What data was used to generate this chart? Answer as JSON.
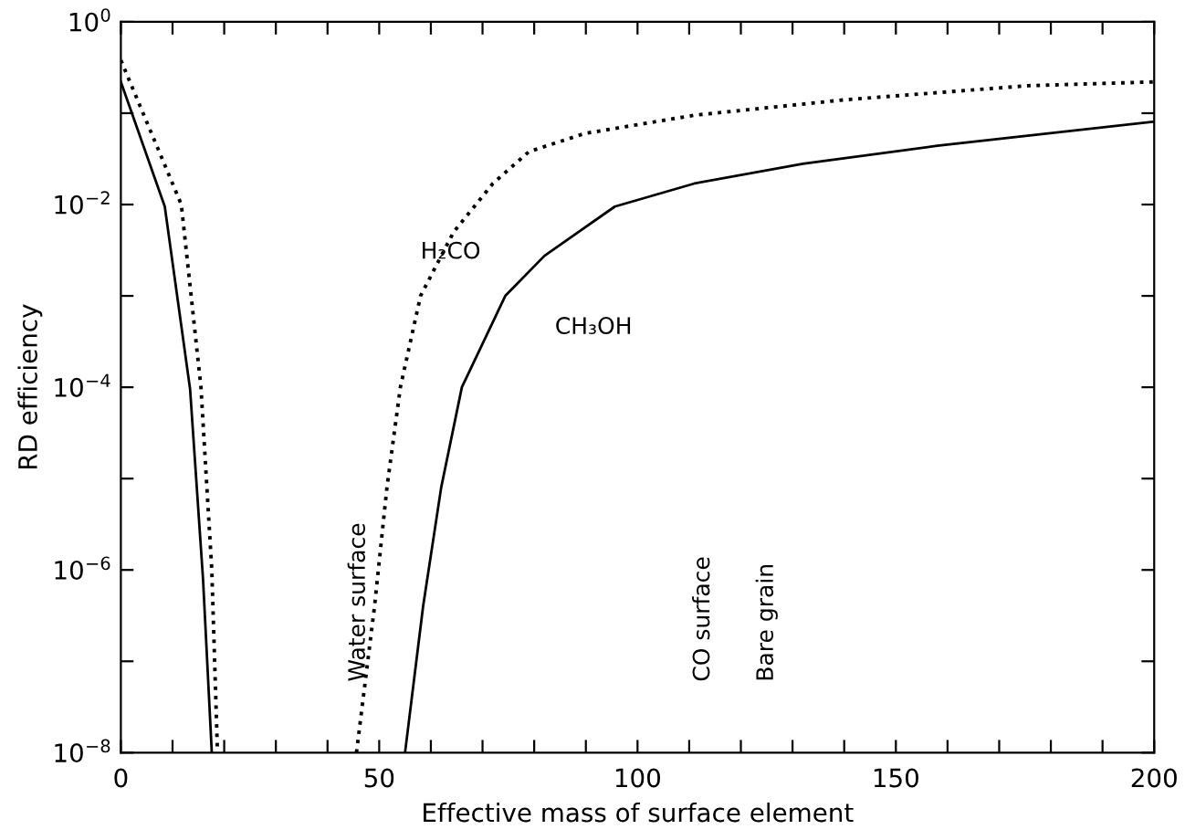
{
  "chart_data": {
    "type": "line",
    "xlabel": "Effective mass of surface element",
    "ylabel": "RD efficiency",
    "log": "y",
    "xlim": [
      0,
      200
    ],
    "ylim": [
      1e-08,
      1
    ],
    "xticks": [
      0,
      {
        "value": 10,
        "label": null
      },
      {
        "value": 20,
        "label": null
      },
      {
        "value": 30,
        "label": null
      },
      {
        "value": 40,
        "label": null
      },
      50,
      {
        "value": 60,
        "label": null
      },
      {
        "value": 70,
        "label": null
      },
      {
        "value": 80,
        "label": null
      },
      {
        "value": 90,
        "label": null
      },
      100,
      {
        "value": 110,
        "label": null
      },
      {
        "value": 120,
        "label": null
      },
      {
        "value": 130,
        "label": null
      },
      {
        "value": 140,
        "label": null
      },
      150,
      {
        "value": 160,
        "label": null
      },
      {
        "value": 170,
        "label": null
      },
      {
        "value": 180,
        "label": null
      },
      {
        "value": 190,
        "label": null
      },
      200
    ],
    "yticks": [
      {
        "value": 1e-08,
        "label": "10$^{−8}$"
      },
      {
        "value": 1e-07,
        "label": null
      },
      {
        "value": 1e-06,
        "label": "10$^{−6}$"
      },
      {
        "value": 1e-05,
        "label": null
      },
      {
        "value": 0.0001,
        "label": "10$^{−4}$"
      },
      {
        "value": 0.001,
        "label": null
      },
      {
        "value": 0.01,
        "label": "10$^{−2}$"
      },
      {
        "value": 0.1,
        "label": null
      },
      {
        "value": 1,
        "label": "10$^{0}$"
      }
    ],
    "grid": false,
    "legend": false,
    "marker": "none",
    "series": [
      {
        "name": "H₂CO",
        "color": "#000000",
        "line_style": "dotted",
        "x": [
          0,
          11.7,
          15.5,
          17.6,
          18.7,
          30,
          45.6,
          49.1,
          51.5,
          54.1,
          58,
          64.4,
          72,
          79,
          89.8,
          111,
          140,
          175.6,
          200
        ],
        "values": [
          0.38,
          0.01,
          0.0001,
          1e-06,
          1e-08,
          null,
          1e-08,
          4e-07,
          8e-06,
          0.0001,
          0.001,
          0.005,
          0.017,
          0.038,
          0.06,
          0.095,
          0.14,
          0.2,
          0.22
        ]
      },
      {
        "name": "CH₃OH",
        "color": "#000000",
        "line_style": "solid",
        "x": [
          0,
          8.5,
          13.4,
          15.9,
          17.6,
          30,
          55,
          58.5,
          62,
          66,
          74.4,
          82,
          95.6,
          111,
          132,
          158,
          200
        ],
        "values": [
          0.22,
          0.0095,
          9.5e-05,
          8e-07,
          1e-08,
          null,
          1e-08,
          4e-07,
          8e-06,
          0.0001,
          0.001,
          0.00275,
          0.0095,
          0.017,
          0.028,
          0.044,
          0.081
        ]
      }
    ],
    "annotations": [
      "Water surface",
      "CO surface",
      "Bare grain"
    ]
  }
}
